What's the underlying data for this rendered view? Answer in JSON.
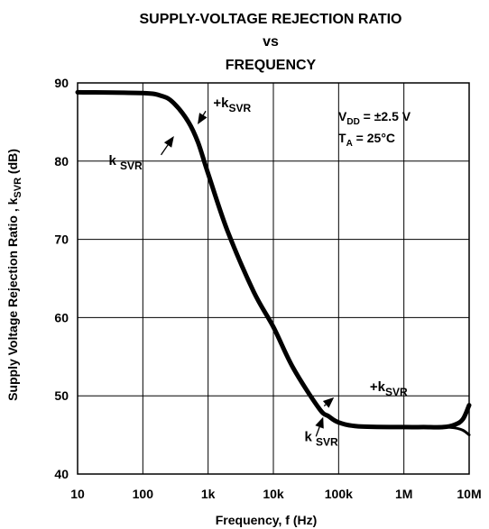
{
  "chart_data": {
    "type": "line",
    "title": [
      "SUPPLY-VOLTAGE REJECTION RATIO",
      "vs",
      "FREQUENCY"
    ],
    "xlabel": "Frequency, f (Hz)",
    "ylabel": "Supply Voltage Rejection Ratio , k",
    "ylabel_sub": "SVR",
    "ylabel_unit": "(dB)",
    "x_scale": "log",
    "xlim": [
      10,
      10000000
    ],
    "ylim": [
      40,
      90
    ],
    "x_ticks": [
      10,
      100,
      1000,
      10000,
      100000,
      1000000,
      10000000
    ],
    "x_tick_labels": [
      "10",
      "100",
      "1k",
      "10k",
      "100k",
      "1M",
      "10M"
    ],
    "y_ticks": [
      40,
      50,
      60,
      70,
      80,
      90
    ],
    "y_tick_labels": [
      "40",
      "50",
      "60",
      "70",
      "80",
      "90"
    ],
    "grid": true,
    "conditions": [
      {
        "main": "V",
        "sub": "DD",
        "rest": " = ±2.5 V"
      },
      {
        "main": "T",
        "sub": "A",
        "rest": " = 25°C"
      }
    ],
    "series": [
      {
        "name": "+kSVR",
        "x": [
          10,
          100,
          200,
          300,
          500,
          700,
          1000,
          2000,
          5000,
          10000,
          20000,
          50000,
          70000,
          100000,
          200000,
          1000000,
          2000000,
          4000000,
          6000000,
          8000000,
          10000000
        ],
        "y": [
          88.8,
          88.7,
          88.3,
          87.4,
          85.0,
          82.4,
          78.4,
          71.0,
          63.3,
          58.8,
          53.6,
          48.4,
          47.4,
          46.6,
          46.1,
          46.0,
          46.0,
          46.0,
          46.3,
          47.0,
          48.8
        ]
      },
      {
        "name": "-kSVR",
        "x": [
          10,
          100,
          200,
          300,
          500,
          700,
          1000,
          2000,
          5000,
          10000,
          20000,
          50000,
          70000,
          100000,
          200000,
          1000000,
          2000000,
          4000000,
          6000000,
          8000000,
          10000000
        ],
        "y": [
          88.8,
          88.7,
          88.3,
          87.4,
          85.0,
          82.4,
          78.4,
          71.0,
          63.3,
          58.8,
          53.6,
          48.4,
          47.4,
          46.6,
          46.1,
          46.0,
          46.0,
          46.0,
          45.9,
          45.6,
          45.0
        ]
      }
    ],
    "annotations": [
      {
        "prefix": "+k",
        "sub": "SVR",
        "tx": 300000,
        "ty": 50.6,
        "ax": 60000,
        "ay": 48.7,
        "hx": 85000,
        "hy": 49.8
      },
      {
        "prefix": "k",
        "sub": "SVR",
        "tx": 30000,
        "ty": 44.2,
        "ax": 45000,
        "ay": 44.8,
        "hx": 58000,
        "hy": 47.3
      },
      {
        "prefix": "+k",
        "sub": "SVR",
        "tx": 1200,
        "ty": 86.9,
        "ax": 920,
        "ay": 86.4,
        "hx": 690,
        "hy": 84.7
      },
      {
        "prefix": "k",
        "sub": "SVR",
        "tx": 30,
        "ty": 79.5,
        "ax": 190,
        "ay": 80.8,
        "hx": 300,
        "hy": 83.2
      }
    ]
  }
}
